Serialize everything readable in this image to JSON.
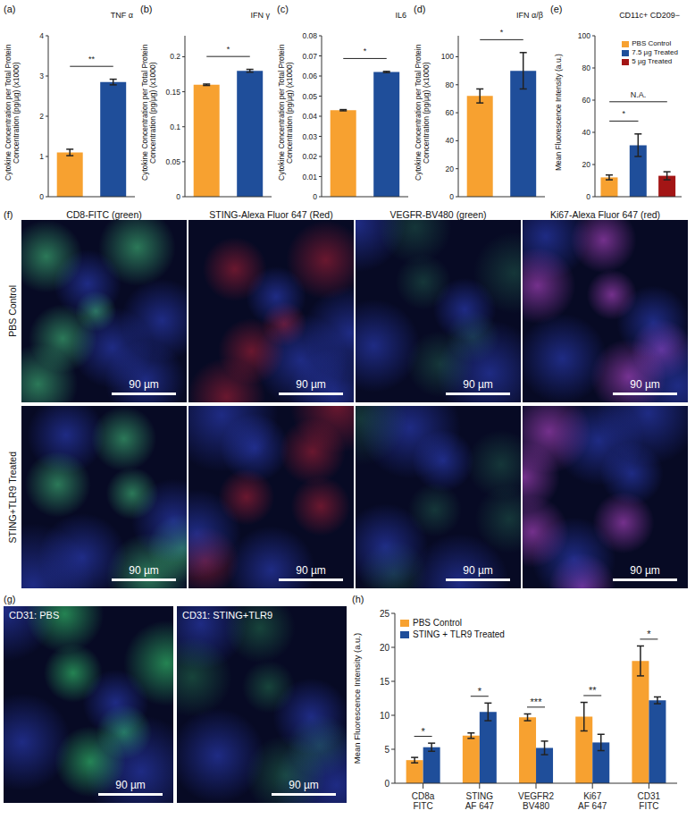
{
  "chart_data": [
    {
      "panel": "(a)",
      "type": "bar",
      "title": "TNF α",
      "y_label": "Cytokine Concentration per Total Protein Concentration (pg/µg) (x1000)",
      "categories": [
        null,
        null
      ],
      "values": [
        1.1,
        2.85
      ],
      "errors": [
        0.08,
        0.07
      ],
      "colors": [
        "#F7A130",
        "#1F4E9A"
      ],
      "ylim": [
        0,
        4
      ],
      "yticks": [
        0,
        1,
        2,
        3,
        4
      ],
      "tick_labels": "y",
      "significance": [
        {
          "pair": [
            0,
            1
          ],
          "label": "**"
        }
      ]
    },
    {
      "panel": "(b)",
      "type": "bar",
      "title": "IFN γ",
      "y_label": "Cytokine Concentration per Total Protein Concentration (pg/µg) (x1000)",
      "categories": [
        null,
        null
      ],
      "values": [
        0.16,
        0.18
      ],
      "errors": [
        0.001,
        0.002
      ],
      "colors": [
        "#F7A130",
        "#1F4E9A"
      ],
      "ylim": [
        0,
        0.23
      ],
      "yticks": [
        0,
        0.05,
        0.1,
        0.15,
        0.2
      ],
      "tick_labels": "y",
      "significance": [
        {
          "pair": [
            0,
            1
          ],
          "label": "*"
        }
      ]
    },
    {
      "panel": "(c)",
      "type": "bar",
      "title": "IL6",
      "y_label": "Cytokine Concentration per Total Protein Concentration (pg/µg) (x1000)",
      "categories": [
        null,
        null
      ],
      "values": [
        0.043,
        0.062
      ],
      "errors": [
        0.0003,
        0.0003
      ],
      "colors": [
        "#F7A130",
        "#1F4E9A"
      ],
      "ylim": [
        0,
        0.08
      ],
      "yticks": [
        0,
        0.01,
        0.02,
        0.03,
        0.04,
        0.05,
        0.06,
        0.07,
        0.08
      ],
      "tick_labels": "y",
      "significance": [
        {
          "pair": [
            0,
            1
          ],
          "label": "*"
        }
      ]
    },
    {
      "panel": "(d)",
      "type": "bar",
      "title": "IFN α/β",
      "y_label": "Cytokine Concentration per Total Protein Concentration (pg/µg) (x1000)",
      "categories": [
        null,
        null
      ],
      "values": [
        72,
        90
      ],
      "errors": [
        5,
        13
      ],
      "colors": [
        "#F7A130",
        "#1F4E9A"
      ],
      "ylim": [
        0,
        115
      ],
      "yticks": [
        0,
        20,
        40,
        60,
        80,
        100
      ],
      "tick_labels": "y",
      "significance": [
        {
          "pair": [
            0,
            1
          ],
          "label": "*"
        }
      ]
    },
    {
      "panel": "(e)",
      "type": "bar",
      "title": "CD11c+ CD209−",
      "y_label": "Mean Fluorescence Intensity (a.u.)",
      "categories": [
        "PBS Control",
        "7.5 µg Treated",
        "5 µg Treated"
      ],
      "values": [
        12,
        32,
        13
      ],
      "errors": [
        1.5,
        7,
        2.5
      ],
      "colors": [
        "#F7A130",
        "#1F4E9A",
        "#A31515"
      ],
      "ylim": [
        0,
        100
      ],
      "yticks": [
        0,
        20,
        40,
        60,
        80,
        100
      ],
      "tick_labels": "y",
      "legend": "top-right",
      "significance": [
        {
          "pair": [
            0,
            1
          ],
          "label": "*"
        },
        {
          "pair": [
            0,
            2
          ],
          "label": "N.A."
        }
      ]
    },
    {
      "panel": "(h)",
      "type": "bar",
      "y_label": "Mean Fluorescence Intensity (a.u.)",
      "categories": [
        "CD8a FITC",
        "STING AF 647",
        "VEGFR2 BV480",
        "Ki67 AF 647",
        "CD31 FITC"
      ],
      "series": [
        {
          "name": "PBS Control",
          "color": "#F7A130",
          "values": [
            3.4,
            7,
            9.7,
            9.8,
            18
          ],
          "errors": [
            0.4,
            0.4,
            0.5,
            2.1,
            2.2
          ]
        },
        {
          "name": "STING + TLR9 Treated",
          "color": "#1F4E9A",
          "values": [
            5.3,
            10.5,
            5.2,
            6,
            12.2
          ],
          "errors": [
            0.6,
            1.3,
            1,
            1.2,
            0.5
          ]
        }
      ],
      "ylim": [
        0,
        25
      ],
      "yticks": [
        0,
        5,
        10,
        15,
        20,
        25
      ],
      "legend": "top-left",
      "significance": [
        "*",
        "*",
        "***",
        "**",
        "*"
      ]
    }
  ],
  "image_panels": {
    "f": {
      "panel": "(f)",
      "columns": [
        "CD8-FITC (green)",
        "STING-Alexa Fluor 647 (Red)",
        "VEGFR-BV480 (green)",
        "Ki67-Alexa Fluor 647 (red)"
      ],
      "rows": [
        "PBS Control",
        "STING+TLR9 Treated"
      ],
      "scale_bar": "90 µm"
    },
    "g": {
      "panel": "(g)",
      "images": [
        "CD31: PBS",
        "CD31: STING+TLR9"
      ],
      "scale_bar": "90 µm"
    }
  }
}
